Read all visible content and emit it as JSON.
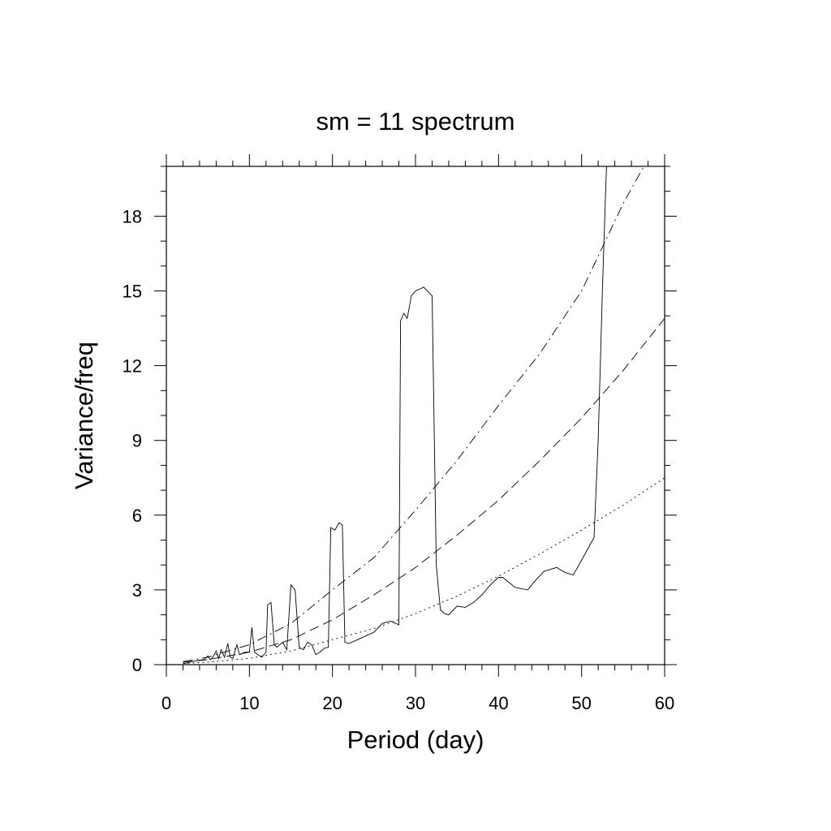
{
  "chart_data": {
    "type": "line",
    "title": "sm = 11 spectrum",
    "xlabel": "Period (day)",
    "ylabel": "Variance/freq",
    "xlim": [
      0,
      60
    ],
    "ylim": [
      0,
      20
    ],
    "x_ticks": [
      0,
      10,
      20,
      30,
      40,
      50,
      60
    ],
    "x_tick_labels": [
      "0",
      "10",
      "20",
      "30",
      "40",
      "50",
      "60"
    ],
    "y_ticks": [
      0,
      3,
      6,
      9,
      12,
      15,
      18
    ],
    "y_tick_labels": [
      "0",
      "3",
      "6",
      "9",
      "12",
      "15",
      "18"
    ],
    "grid": false,
    "legend": "none",
    "series": [
      {
        "style": "solid",
        "x": [
          2,
          2.5,
          3,
          3.5,
          4,
          4.5,
          5,
          5.3,
          5.6,
          6,
          6.3,
          6.6,
          7,
          7.4,
          7.7,
          8,
          8.5,
          8.8,
          9.1,
          9.5,
          10,
          10.3,
          10.6,
          11,
          11.5,
          12,
          12.2,
          12.6,
          13,
          13.3,
          14,
          14.5,
          15,
          15.5,
          16,
          16.5,
          17,
          17.5,
          18,
          18.5,
          19,
          19.5,
          19.8,
          20.3,
          20.8,
          21.2,
          21.5,
          22,
          23,
          24,
          25,
          26,
          27,
          28,
          28.2,
          28.6,
          29,
          29.5,
          30,
          31,
          32,
          32.5,
          33,
          33.5,
          34,
          35,
          36,
          37,
          38,
          39,
          40,
          40.5,
          42,
          43.5,
          44.5,
          45.5,
          47,
          48,
          49,
          50,
          51,
          51.5,
          52,
          52.5,
          52.9,
          53
        ],
        "values": [
          0.05,
          0.07,
          0.12,
          0.15,
          0.18,
          0.2,
          0.35,
          0.2,
          0.3,
          0.55,
          0.25,
          0.6,
          0.3,
          0.85,
          0.3,
          0.25,
          0.8,
          0.4,
          0.45,
          0.5,
          0.5,
          1.5,
          0.5,
          0.4,
          0.3,
          0.5,
          2.4,
          2.5,
          0.8,
          0.7,
          0.9,
          0.6,
          3.2,
          3.0,
          0.7,
          0.6,
          0.9,
          0.8,
          0.4,
          0.5,
          0.65,
          0.7,
          5.5,
          5.4,
          5.7,
          5.6,
          0.9,
          0.85,
          1.0,
          1.15,
          1.3,
          1.65,
          1.75,
          1.6,
          13.8,
          14.1,
          13.9,
          14.8,
          15.0,
          15.15,
          14.8,
          4.0,
          2.2,
          2.05,
          2.0,
          2.35,
          2.3,
          2.5,
          2.8,
          3.2,
          3.5,
          3.5,
          3.1,
          3.0,
          3.4,
          3.75,
          3.9,
          3.7,
          3.6,
          4.2,
          4.8,
          5.1,
          9.0,
          15.0,
          19.0,
          20.0
        ]
      },
      {
        "style": "dotted",
        "x": [
          2,
          5,
          10,
          15,
          20,
          25,
          30,
          35,
          40,
          45,
          50,
          55,
          60
        ],
        "values": [
          0.05,
          0.1,
          0.25,
          0.55,
          1.0,
          1.45,
          2.05,
          2.75,
          3.55,
          4.45,
          5.4,
          6.4,
          7.5
        ]
      },
      {
        "style": "dashed",
        "x": [
          2,
          5,
          10,
          15,
          20,
          25,
          30,
          35,
          40,
          45,
          50,
          55,
          60
        ],
        "values": [
          0.1,
          0.2,
          0.5,
          1.0,
          1.8,
          2.8,
          3.9,
          5.2,
          6.6,
          8.2,
          9.9,
          11.8,
          13.9
        ]
      },
      {
        "style": "dash-dot",
        "x": [
          2,
          5,
          10,
          15,
          20,
          25,
          30,
          35,
          40,
          45,
          50,
          55,
          57.5
        ],
        "values": [
          0.12,
          0.3,
          0.8,
          1.65,
          3.0,
          4.3,
          6.2,
          8.2,
          10.4,
          12.5,
          15.0,
          18.5,
          20.0
        ]
      }
    ]
  }
}
